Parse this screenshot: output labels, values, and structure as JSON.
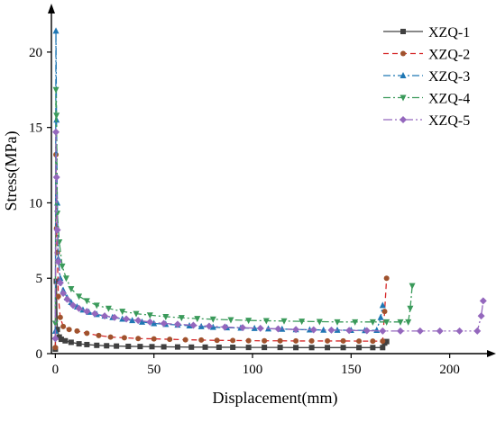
{
  "chart_data": {
    "type": "line",
    "xlabel": "Displacement(mm)",
    "ylabel": "Stress(MPa)",
    "xlim": [
      -2,
      218
    ],
    "ylim": [
      0,
      22.5
    ],
    "xticks": [
      0,
      50,
      100,
      150,
      200
    ],
    "yticks": [
      0,
      5,
      10,
      15,
      20
    ],
    "grid": false,
    "legend_position": "top-right",
    "series": [
      {
        "name": "XZQ-1",
        "color": "#404040",
        "dash": "none",
        "marker": "square",
        "x": [
          0,
          0.5,
          1,
          2,
          3,
          5,
          8,
          12,
          16,
          21,
          26,
          31,
          37,
          43,
          49,
          55,
          62,
          69,
          76,
          83,
          90,
          98,
          106,
          114,
          122,
          130,
          138,
          146,
          154,
          161,
          166,
          167,
          168
        ],
        "y": [
          0.3,
          4.8,
          1.6,
          1.1,
          0.95,
          0.85,
          0.75,
          0.65,
          0.6,
          0.55,
          0.52,
          0.5,
          0.48,
          0.47,
          0.46,
          0.45,
          0.44,
          0.43,
          0.43,
          0.42,
          0.42,
          0.41,
          0.41,
          0.41,
          0.4,
          0.4,
          0.4,
          0.4,
          0.4,
          0.4,
          0.4,
          0.7,
          0.8
        ]
      },
      {
        "name": "XZQ-2",
        "color": "#d62728",
        "dash": "6,4",
        "marker": "circle",
        "marker_color": "#a0522d",
        "x": [
          0,
          0.3,
          0.6,
          1,
          1.5,
          2.5,
          4,
          7,
          11,
          16,
          22,
          28,
          35,
          42,
          50,
          58,
          66,
          74,
          82,
          90,
          98,
          106,
          114,
          122,
          130,
          138,
          146,
          154,
          161,
          166,
          167,
          168
        ],
        "y": [
          0.4,
          13.2,
          8.3,
          6.7,
          3.8,
          2.4,
          1.8,
          1.6,
          1.5,
          1.35,
          1.2,
          1.1,
          1.05,
          1.0,
          0.98,
          0.95,
          0.92,
          0.9,
          0.88,
          0.87,
          0.86,
          0.85,
          0.85,
          0.84,
          0.84,
          0.84,
          0.84,
          0.83,
          0.83,
          0.83,
          2.8,
          5.0
        ]
      },
      {
        "name": "XZQ-3",
        "color": "#1f77b4",
        "dash": "8,3,2,3",
        "marker": "triangle",
        "x": [
          0,
          0.3,
          0.6,
          1,
          1.5,
          2.5,
          4,
          6,
          8,
          11,
          14,
          17,
          21,
          25,
          29,
          34,
          39,
          44,
          50,
          56,
          62,
          68,
          74,
          80,
          87,
          94,
          101,
          108,
          115,
          122,
          129,
          136,
          143,
          150,
          157,
          163,
          165,
          166
        ],
        "y": [
          1.5,
          21.4,
          15.5,
          10.0,
          6.3,
          5.0,
          4.2,
          3.7,
          3.4,
          3.1,
          2.9,
          2.75,
          2.6,
          2.5,
          2.4,
          2.3,
          2.2,
          2.1,
          2.0,
          1.95,
          1.9,
          1.85,
          1.8,
          1.75,
          1.72,
          1.7,
          1.68,
          1.65,
          1.63,
          1.6,
          1.58,
          1.57,
          1.56,
          1.55,
          1.54,
          1.55,
          2.4,
          3.2
        ]
      },
      {
        "name": "XZQ-4",
        "color": "#3a9a5a",
        "dash": "8,3,2,3",
        "marker": "triangle-down",
        "x": [
          0,
          0.3,
          0.6,
          1,
          2,
          3.5,
          5.5,
          8,
          12,
          16,
          21,
          27,
          34,
          41,
          48,
          56,
          64,
          72,
          80,
          89,
          98,
          107,
          116,
          125,
          134,
          143,
          152,
          161,
          168,
          175,
          179,
          180,
          181
        ],
        "y": [
          2.0,
          17.5,
          15.8,
          9.3,
          7.4,
          5.8,
          5.0,
          4.3,
          3.8,
          3.5,
          3.2,
          3.0,
          2.8,
          2.65,
          2.55,
          2.45,
          2.38,
          2.32,
          2.28,
          2.24,
          2.2,
          2.18,
          2.16,
          2.14,
          2.12,
          2.1,
          2.1,
          2.1,
          2.1,
          2.1,
          2.1,
          3.0,
          4.5
        ]
      },
      {
        "name": "XZQ-5",
        "color": "#9467bd",
        "dash": "10,3,2,3,2,3",
        "marker": "diamond",
        "x": [
          0,
          0.3,
          0.6,
          1,
          1.5,
          2.5,
          4,
          6,
          9,
          12,
          16,
          20,
          25,
          30,
          36,
          42,
          48,
          55,
          62,
          70,
          78,
          86,
          95,
          104,
          113,
          122,
          131,
          140,
          149,
          158,
          166,
          175,
          185,
          195,
          205,
          214,
          216,
          217
        ],
        "y": [
          1.0,
          14.7,
          11.7,
          8.2,
          6.1,
          4.7,
          4.0,
          3.6,
          3.2,
          3.0,
          2.8,
          2.65,
          2.5,
          2.4,
          2.3,
          2.2,
          2.1,
          2.0,
          1.95,
          1.88,
          1.82,
          1.76,
          1.72,
          1.68,
          1.64,
          1.6,
          1.58,
          1.56,
          1.54,
          1.52,
          1.5,
          1.5,
          1.5,
          1.5,
          1.5,
          1.5,
          2.5,
          3.5
        ]
      }
    ]
  }
}
